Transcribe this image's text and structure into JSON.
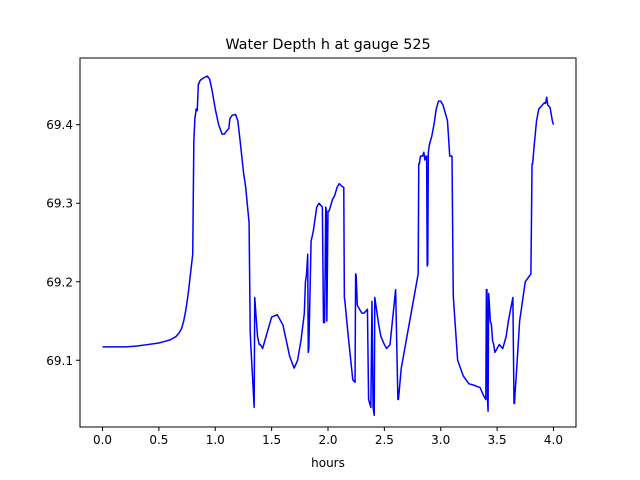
{
  "chart_data": {
    "type": "line",
    "title": "Water Depth h at gauge 525",
    "xlabel": "hours",
    "ylabel": "",
    "xlim": [
      -0.2,
      4.2
    ],
    "ylim": [
      69.015,
      69.485
    ],
    "xticks": [
      0.0,
      0.5,
      1.0,
      1.5,
      2.0,
      2.5,
      3.0,
      3.5,
      4.0
    ],
    "xtick_labels": [
      "0.0",
      "0.5",
      "1.0",
      "1.5",
      "2.0",
      "2.5",
      "3.0",
      "3.5",
      "4.0"
    ],
    "yticks": [
      69.1,
      69.2,
      69.3,
      69.4
    ],
    "ytick_labels": [
      "69.1",
      "69.2",
      "69.3",
      "69.4"
    ],
    "grid": false,
    "series": [
      {
        "color": "#0000ff",
        "x": [
          0.0,
          0.2,
          0.3,
          0.4,
          0.5,
          0.55,
          0.6,
          0.65,
          0.68,
          0.7,
          0.72,
          0.74,
          0.76,
          0.78,
          0.8,
          0.81,
          0.82,
          0.822,
          0.83,
          0.84,
          0.85,
          0.855,
          0.86,
          0.87,
          0.9,
          0.93,
          0.95,
          0.97,
          1.0,
          1.03,
          1.06,
          1.08,
          1.1,
          1.12,
          1.13,
          1.15,
          1.18,
          1.2,
          1.22,
          1.25,
          1.27,
          1.3,
          1.31,
          1.315,
          1.33,
          1.345,
          1.35,
          1.36,
          1.375,
          1.39,
          1.4,
          1.42,
          1.45,
          1.5,
          1.55,
          1.6,
          1.63,
          1.66,
          1.7,
          1.73,
          1.76,
          1.79,
          1.8,
          1.805,
          1.81,
          1.82,
          1.825,
          1.83,
          1.85,
          1.86,
          1.87,
          1.88,
          1.9,
          1.92,
          1.95,
          1.96,
          1.965,
          1.97,
          1.98,
          1.985,
          1.99,
          2.0,
          2.01,
          2.02,
          2.04,
          2.06,
          2.08,
          2.1,
          2.12,
          2.14,
          2.145,
          2.15,
          2.18,
          2.22,
          2.24,
          2.245,
          2.25,
          2.26,
          2.28,
          2.3,
          2.32,
          2.35,
          2.36,
          2.37,
          2.38,
          2.39,
          2.4,
          2.41,
          2.415,
          2.42,
          2.43,
          2.45,
          2.47,
          2.5,
          2.52,
          2.55,
          2.6,
          2.62,
          2.625,
          2.65,
          2.7,
          2.75,
          2.8,
          2.805,
          2.81,
          2.82,
          2.84,
          2.85,
          2.86,
          2.87,
          2.875,
          2.88,
          2.885,
          2.89,
          2.9,
          2.92,
          2.94,
          2.96,
          2.98,
          3.0,
          3.02,
          3.04,
          3.06,
          3.08,
          3.1,
          3.11,
          3.112,
          3.15,
          3.2,
          3.25,
          3.3,
          3.35,
          3.38,
          3.4,
          3.405,
          3.41,
          3.415,
          3.42,
          3.425,
          3.43,
          3.44,
          3.45,
          3.46,
          3.47,
          3.48,
          3.5,
          3.52,
          3.55,
          3.58,
          3.6,
          3.62,
          3.64,
          3.65,
          3.655,
          3.66,
          3.67,
          3.7,
          3.75,
          3.8,
          3.81,
          3.815,
          3.83,
          3.85,
          3.87,
          3.9,
          3.92,
          3.93,
          3.94,
          3.95,
          3.97,
          3.99,
          4.0
        ],
        "y": [
          69.117,
          69.117,
          69.118,
          69.12,
          69.122,
          69.124,
          69.126,
          69.13,
          69.135,
          69.14,
          69.15,
          69.165,
          69.185,
          69.21,
          69.235,
          69.38,
          69.41,
          69.41,
          69.42,
          69.418,
          69.452,
          69.452,
          69.455,
          69.457,
          69.46,
          69.462,
          69.458,
          69.445,
          69.42,
          69.4,
          69.388,
          69.388,
          69.392,
          69.395,
          69.408,
          69.412,
          69.413,
          69.405,
          69.38,
          69.34,
          69.32,
          69.275,
          69.135,
          69.12,
          69.08,
          69.04,
          69.18,
          69.16,
          69.13,
          69.12,
          69.12,
          69.115,
          69.13,
          69.155,
          69.158,
          69.145,
          69.125,
          69.105,
          69.09,
          69.1,
          69.125,
          69.16,
          69.2,
          69.205,
          69.21,
          69.235,
          69.11,
          69.115,
          69.252,
          69.258,
          69.265,
          69.275,
          69.295,
          69.3,
          69.295,
          69.148,
          69.15,
          69.148,
          69.295,
          69.29,
          69.15,
          69.29,
          69.29,
          69.295,
          69.305,
          69.31,
          69.32,
          69.325,
          69.322,
          69.32,
          69.18,
          69.175,
          69.13,
          69.075,
          69.072,
          69.21,
          69.208,
          69.17,
          69.165,
          69.16,
          69.16,
          69.165,
          69.05,
          69.045,
          69.04,
          69.175,
          69.04,
          69.03,
          69.18,
          69.175,
          69.165,
          69.145,
          69.13,
          69.12,
          69.115,
          69.12,
          69.19,
          69.05,
          69.05,
          69.09,
          69.13,
          69.17,
          69.21,
          69.35,
          69.35,
          69.36,
          69.36,
          69.365,
          69.355,
          69.36,
          69.36,
          69.22,
          69.222,
          69.365,
          69.375,
          69.385,
          69.4,
          69.42,
          69.43,
          69.43,
          69.425,
          69.415,
          69.405,
          69.36,
          69.36,
          69.2,
          69.18,
          69.1,
          69.08,
          69.07,
          69.068,
          69.065,
          69.055,
          69.05,
          69.19,
          69.19,
          69.05,
          69.035,
          69.185,
          69.175,
          69.15,
          69.145,
          69.125,
          69.12,
          69.11,
          69.115,
          69.12,
          69.115,
          69.13,
          69.15,
          69.165,
          69.18,
          69.045,
          69.045,
          69.06,
          69.08,
          69.15,
          69.2,
          69.21,
          69.35,
          69.35,
          69.375,
          69.405,
          69.42,
          69.425,
          69.428,
          69.427,
          69.435,
          69.425,
          69.422,
          69.405,
          69.4
        ]
      }
    ]
  }
}
